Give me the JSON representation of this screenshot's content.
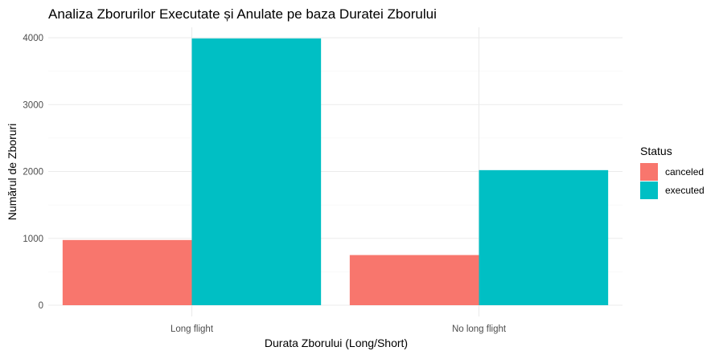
{
  "chart_data": {
    "type": "bar",
    "title": "Analiza Zborurilor Executate și Anulate pe baza Duratei Zborului",
    "xlabel": "Durata Zborului (Long/Short)",
    "ylabel": "Numărul de Zboruri",
    "categories": [
      "Long flight",
      "No long flight"
    ],
    "series": [
      {
        "name": "canceled",
        "values": [
          975,
          750
        ],
        "color": "#F8766D"
      },
      {
        "name": "executed",
        "values": [
          3990,
          2020
        ],
        "color": "#00BFC4"
      }
    ],
    "ylim": [
      0,
      4000
    ],
    "yticks": [
      "0",
      "1000",
      "2000",
      "3000",
      "4000"
    ],
    "grid": true,
    "legend": {
      "title": "Status",
      "placement": "right"
    }
  }
}
